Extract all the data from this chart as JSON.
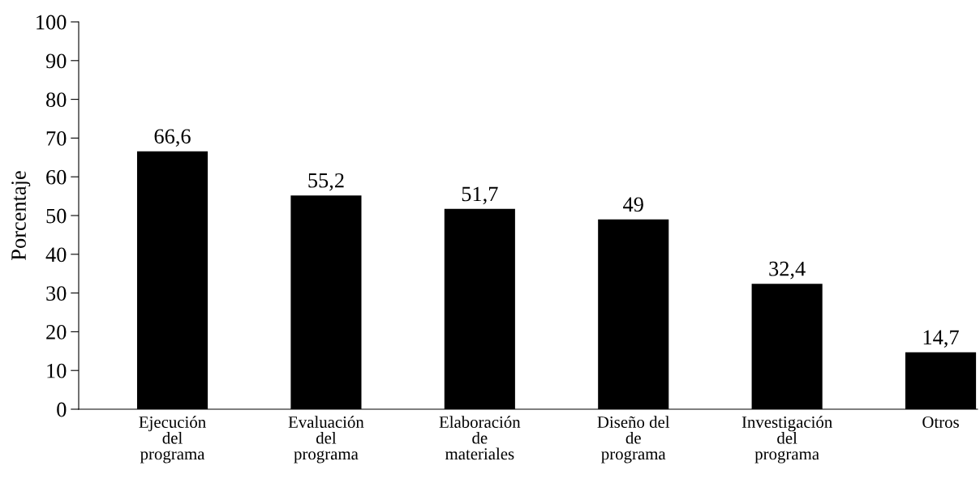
{
  "chart_data": {
    "type": "bar",
    "ylabel": "Porcentaje",
    "categories": [
      "Ejecución\ndel\nprograma",
      "Evaluación\ndel\nprograma",
      "Elaboración\nde\nmateriales",
      "Diseño del\nde\nprograma",
      "Investigación\ndel\nprograma",
      "Otros"
    ],
    "values": [
      66.6,
      55.2,
      51.7,
      49,
      32.4,
      14.7
    ],
    "value_labels": [
      "66,6",
      "55,2",
      "51,7",
      "49",
      "32,4",
      "14,7"
    ],
    "color": "#000000",
    "ylim": [
      0,
      100
    ],
    "yticks": [
      0,
      10,
      20,
      30,
      40,
      50,
      60,
      70,
      80,
      90,
      100
    ],
    "grid": false,
    "legend": false
  }
}
